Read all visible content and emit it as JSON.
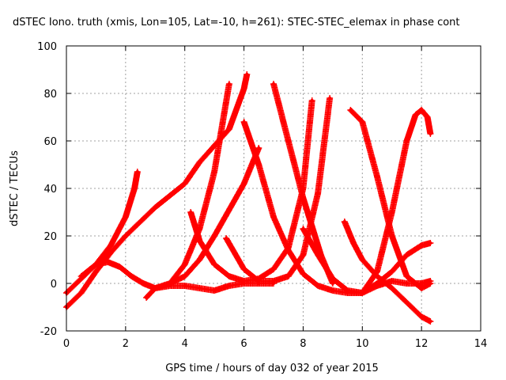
{
  "chart_data": {
    "type": "scatter",
    "title": "dSTEC Iono. truth (xmis, Lon=105, Lat=-10, h=261): STEC-STEC_elemax in phase cont",
    "xlabel": "GPS time / hours of day 032 of year 2015",
    "ylabel": "dSTEC  / TECUs",
    "xlim": [
      0,
      14
    ],
    "ylim": [
      -20,
      100
    ],
    "xticks": [
      0,
      2,
      4,
      6,
      8,
      10,
      12,
      14
    ],
    "yticks": [
      -20,
      0,
      20,
      40,
      60,
      80,
      100
    ],
    "xtick_labels": [
      "0",
      "2",
      "4",
      "6",
      "8",
      "10",
      "12",
      "14"
    ],
    "ytick_labels": [
      "-20",
      "0",
      "20",
      "40",
      "60",
      "80",
      "100"
    ],
    "grid": true,
    "marker": "+",
    "color": "#ff0000",
    "series": [
      {
        "x": [
          0,
          0.5,
          1.0,
          1.5,
          2.0,
          2.3,
          2.4
        ],
        "y": [
          -4,
          2,
          8,
          16,
          28,
          40,
          47
        ]
      },
      {
        "x": [
          0,
          0.5,
          1.0,
          1.5,
          2.0,
          2.5,
          3.0,
          3.5,
          4.0,
          4.5,
          5.0,
          5.5,
          6.0,
          6.1
        ],
        "y": [
          -10,
          -4,
          5,
          13,
          20,
          26,
          32,
          37,
          42,
          51,
          58,
          65,
          82,
          88
        ]
      },
      {
        "x": [
          0.5,
          1.0,
          1.4,
          1.8,
          2.2,
          2.6,
          3.0,
          3.5,
          4.0,
          4.5,
          5.0,
          5.5,
          6.0,
          6.5,
          7.0
        ],
        "y": [
          3,
          8,
          9,
          7,
          3,
          0,
          -2,
          -1,
          -1,
          -2,
          -3,
          -1,
          0,
          0,
          0
        ]
      },
      {
        "x": [
          2.7,
          3.0,
          3.5,
          4.0,
          4.5,
          5.0,
          5.5,
          6.0,
          6.5
        ],
        "y": [
          -6,
          -2,
          0,
          3,
          10,
          20,
          31,
          42,
          57
        ]
      },
      {
        "x": [
          3.5,
          4.0,
          4.5,
          5.0,
          5.5
        ],
        "y": [
          0,
          8,
          23,
          47,
          84
        ]
      },
      {
        "x": [
          4.2,
          4.5,
          5.0,
          5.5,
          6.0,
          6.5,
          7.0,
          7.5,
          8.0,
          8.3
        ],
        "y": [
          30,
          18,
          8,
          3,
          1,
          2,
          6,
          15,
          40,
          77
        ]
      },
      {
        "x": [
          5.4,
          6.0,
          6.5,
          7.0,
          7.5,
          8.0,
          8.5,
          8.9
        ],
        "y": [
          19,
          6,
          1,
          1,
          3,
          12,
          38,
          78
        ]
      },
      {
        "x": [
          6.0,
          6.5,
          7.0,
          7.5,
          8.0,
          8.5,
          9.0,
          9.5,
          10.0,
          10.5,
          11.0,
          11.5,
          12.0,
          12.3
        ],
        "y": [
          68,
          50,
          28,
          14,
          4,
          -1,
          -3,
          -4,
          -4,
          -1,
          1,
          0,
          0,
          1
        ]
      },
      {
        "x": [
          7.0,
          7.5,
          8.0,
          8.3,
          8.6,
          9.0
        ],
        "y": [
          84,
          60,
          36,
          24,
          12,
          0
        ]
      },
      {
        "x": [
          8.0,
          8.5,
          9.0,
          9.5,
          10.0,
          10.5,
          11.0,
          11.5,
          12.0,
          12.3
        ],
        "y": [
          23,
          12,
          2,
          -3,
          -4,
          0,
          5,
          12,
          16,
          17
        ]
      },
      {
        "x": [
          9.4,
          9.7,
          10.0,
          10.5,
          11.0,
          11.5,
          12.0,
          12.3
        ],
        "y": [
          26,
          17,
          10,
          3,
          -2,
          -8,
          -14,
          -16
        ]
      },
      {
        "x": [
          9.6,
          10.0,
          10.5,
          11.0,
          11.5,
          12.0,
          12.3
        ],
        "y": [
          73,
          68,
          45,
          20,
          3,
          -2,
          0
        ]
      },
      {
        "x": [
          10.0,
          10.5,
          11.0,
          11.5,
          11.8,
          12.0,
          12.2,
          12.3
        ],
        "y": [
          -4,
          5,
          30,
          60,
          71,
          73,
          70,
          63
        ]
      }
    ]
  }
}
